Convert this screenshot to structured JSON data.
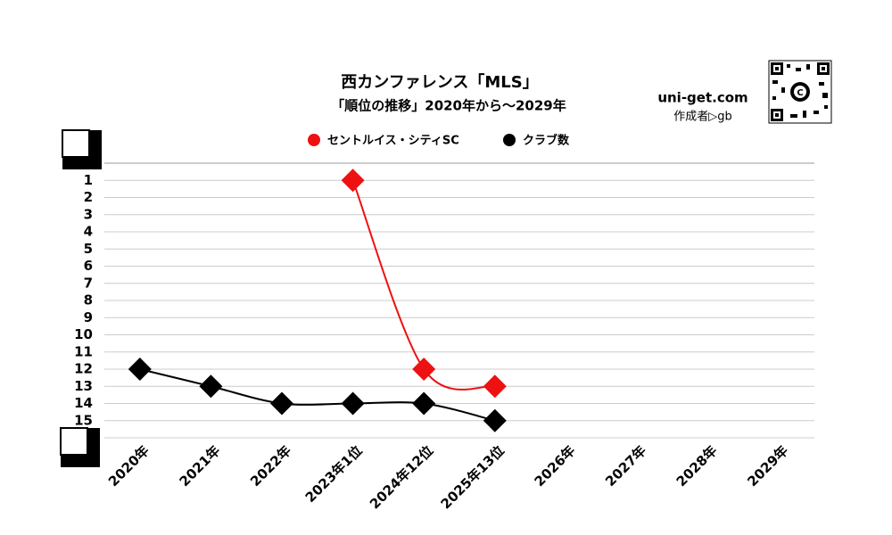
{
  "chart_data": {
    "type": "line",
    "title": "西カンファレンス「MLS」",
    "subtitle": "「順位の推移」2020年から～2029年",
    "site": "uni-get.com",
    "author": "作成者▷gb",
    "categories": [
      "2020年",
      "2021年",
      "2022年",
      "2023年1位",
      "2024年12位",
      "2025年13位",
      "2026年",
      "2027年",
      "2028年",
      "2029年"
    ],
    "series": [
      {
        "name": "セントルイス・シティSC",
        "color": "#ee1111",
        "values": [
          null,
          null,
          null,
          1,
          12,
          13,
          null,
          null,
          null,
          null
        ]
      },
      {
        "name": "クラブ数",
        "color": "#000000",
        "values": [
          12,
          13,
          14,
          14,
          14,
          15,
          null,
          null,
          null,
          null
        ]
      }
    ],
    "ylim": [
      0,
      16
    ],
    "y_reversed": true,
    "yticks": [
      1,
      2,
      3,
      4,
      5,
      6,
      7,
      8,
      9,
      10,
      11,
      12,
      13,
      14,
      15
    ],
    "grid": true
  }
}
